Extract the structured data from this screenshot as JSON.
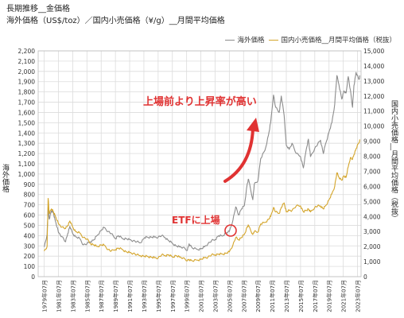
{
  "title_line1": "長期推移__金価格",
  "title_line2": "海外価格（US$/toz）／国内小売価格（¥/g）__月間平均価格",
  "chart_data": {
    "type": "line",
    "x_tick_labels": [
      "1979年07月",
      "1981年07月",
      "1983年07月",
      "1985年07月",
      "1987年07月",
      "1989年07月",
      "1991年07月",
      "1993年07月",
      "1995年07月",
      "1997年07月",
      "1999年07月",
      "2001年07月",
      "2003年07月",
      "2005年07月",
      "2007年07月",
      "2009年07月",
      "2011年07月",
      "2013年07月",
      "2015年07月",
      "2017年07月",
      "2019年07月",
      "2021年07月",
      "2023年07月"
    ],
    "ylabel_left": "海外価格",
    "ylabel_right": "国内小売価格__月間平均価格（税抜）",
    "ylim_left": [
      0,
      2200
    ],
    "yticks_left": [
      "0",
      "100",
      "200",
      "300",
      "400",
      "500",
      "600",
      "700",
      "800",
      "900",
      "1,000",
      "1,100",
      "1,200",
      "1,300",
      "1,400",
      "1,500",
      "1,600",
      "1,700",
      "1,800",
      "1,900",
      "2,000",
      "2,100",
      "2,200"
    ],
    "ylim_right": [
      0,
      15000
    ],
    "yticks_right": [
      "0",
      "1,000",
      "2,000",
      "3,000",
      "4,000",
      "5,000",
      "6,000",
      "7,000",
      "8,000",
      "9,000",
      "10,000",
      "11,000",
      "12,000",
      "13,000",
      "14,000",
      "15,000"
    ],
    "grid": true,
    "legend_position": "top-right",
    "series": [
      {
        "name": "海外価格",
        "axis": "left",
        "color": "#8c8c8c",
        "points": [
          [
            1979.5,
            290
          ],
          [
            1979.9,
            410
          ],
          [
            1980.05,
            680
          ],
          [
            1980.2,
            560
          ],
          [
            1980.5,
            640
          ],
          [
            1980.8,
            620
          ],
          [
            1981.0,
            560
          ],
          [
            1981.5,
            430
          ],
          [
            1982.0,
            390
          ],
          [
            1982.5,
            340
          ],
          [
            1982.8,
            420
          ],
          [
            1983.1,
            490
          ],
          [
            1983.5,
            420
          ],
          [
            1983.9,
            390
          ],
          [
            1984.5,
            370
          ],
          [
            1985.0,
            310
          ],
          [
            1985.5,
            320
          ],
          [
            1986.0,
            340
          ],
          [
            1986.5,
            360
          ],
          [
            1986.9,
            400
          ],
          [
            1987.5,
            450
          ],
          [
            1987.9,
            480
          ],
          [
            1988.5,
            440
          ],
          [
            1988.9,
            420
          ],
          [
            1989.5,
            370
          ],
          [
            1989.9,
            400
          ],
          [
            1990.5,
            370
          ],
          [
            1991.0,
            370
          ],
          [
            1991.5,
            360
          ],
          [
            1992.0,
            350
          ],
          [
            1992.5,
            340
          ],
          [
            1993.0,
            330
          ],
          [
            1993.6,
            380
          ],
          [
            1994.0,
            385
          ],
          [
            1994.5,
            385
          ],
          [
            1995.0,
            385
          ],
          [
            1995.5,
            385
          ],
          [
            1996.0,
            400
          ],
          [
            1996.5,
            380
          ],
          [
            1997.0,
            350
          ],
          [
            1997.5,
            325
          ],
          [
            1998.0,
            300
          ],
          [
            1998.5,
            290
          ],
          [
            1999.0,
            287
          ],
          [
            1999.6,
            255
          ],
          [
            1999.85,
            320
          ],
          [
            2000.3,
            280
          ],
          [
            2001.0,
            265
          ],
          [
            2001.5,
            270
          ],
          [
            2002.0,
            290
          ],
          [
            2002.5,
            320
          ],
          [
            2003.0,
            350
          ],
          [
            2003.5,
            360
          ],
          [
            2004.0,
            400
          ],
          [
            2004.5,
            395
          ],
          [
            2005.0,
            425
          ],
          [
            2005.5,
            440
          ],
          [
            2006.0,
            550
          ],
          [
            2006.4,
            680
          ],
          [
            2006.8,
            600
          ],
          [
            2007.2,
            660
          ],
          [
            2007.6,
            690
          ],
          [
            2008.0,
            900
          ],
          [
            2008.2,
            950
          ],
          [
            2008.8,
            750
          ],
          [
            2009.0,
            900
          ],
          [
            2009.5,
            930
          ],
          [
            2009.9,
            1150
          ],
          [
            2010.5,
            1230
          ],
          [
            2011.0,
            1380
          ],
          [
            2011.3,
            1500
          ],
          [
            2011.7,
            1770
          ],
          [
            2012.0,
            1650
          ],
          [
            2012.5,
            1600
          ],
          [
            2012.8,
            1760
          ],
          [
            2013.2,
            1570
          ],
          [
            2013.5,
            1280
          ],
          [
            2013.9,
            1240
          ],
          [
            2014.3,
            1300
          ],
          [
            2014.9,
            1200
          ],
          [
            2015.5,
            1170
          ],
          [
            2015.9,
            1060
          ],
          [
            2016.3,
            1240
          ],
          [
            2016.6,
            1340
          ],
          [
            2016.9,
            1170
          ],
          [
            2017.5,
            1250
          ],
          [
            2017.9,
            1290
          ],
          [
            2018.3,
            1330
          ],
          [
            2018.7,
            1200
          ],
          [
            2019.0,
            1290
          ],
          [
            2019.5,
            1410
          ],
          [
            2019.9,
            1500
          ],
          [
            2020.3,
            1680
          ],
          [
            2020.6,
            1960
          ],
          [
            2020.9,
            1870
          ],
          [
            2021.3,
            1730
          ],
          [
            2021.6,
            1810
          ],
          [
            2021.9,
            1790
          ],
          [
            2022.2,
            1950
          ],
          [
            2022.5,
            1820
          ],
          [
            2022.8,
            1650
          ],
          [
            2023.0,
            1860
          ],
          [
            2023.3,
            1990
          ],
          [
            2023.7,
            1920
          ],
          [
            2023.85,
            1960
          ]
        ]
      },
      {
        "name": "国内小売価格__月間平均価格（税抜）",
        "axis": "right",
        "color": "#d4a52b",
        "points": [
          [
            1979.5,
            1700
          ],
          [
            1979.9,
            2000
          ],
          [
            1980.05,
            5200
          ],
          [
            1980.2,
            4200
          ],
          [
            1980.5,
            4500
          ],
          [
            1980.8,
            4300
          ],
          [
            1981.0,
            4100
          ],
          [
            1981.5,
            3500
          ],
          [
            1982.0,
            3300
          ],
          [
            1982.5,
            3200
          ],
          [
            1982.8,
            3400
          ],
          [
            1983.1,
            3700
          ],
          [
            1983.5,
            3300
          ],
          [
            1983.9,
            3000
          ],
          [
            1984.5,
            2900
          ],
          [
            1985.0,
            2600
          ],
          [
            1985.5,
            2500
          ],
          [
            1986.0,
            2200
          ],
          [
            1986.5,
            2100
          ],
          [
            1986.9,
            2000
          ],
          [
            1987.5,
            2100
          ],
          [
            1987.9,
            2100
          ],
          [
            1988.5,
            1800
          ],
          [
            1988.9,
            1700
          ],
          [
            1989.5,
            1800
          ],
          [
            1989.9,
            1900
          ],
          [
            1990.5,
            1800
          ],
          [
            1991.0,
            1650
          ],
          [
            1991.5,
            1600
          ],
          [
            1992.0,
            1550
          ],
          [
            1992.5,
            1450
          ],
          [
            1993.0,
            1400
          ],
          [
            1993.6,
            1350
          ],
          [
            1994.0,
            1350
          ],
          [
            1994.5,
            1300
          ],
          [
            1995.0,
            1250
          ],
          [
            1995.5,
            1250
          ],
          [
            1996.0,
            1450
          ],
          [
            1996.5,
            1400
          ],
          [
            1997.0,
            1450
          ],
          [
            1997.5,
            1300
          ],
          [
            1998.0,
            1400
          ],
          [
            1998.5,
            1300
          ],
          [
            1999.0,
            1250
          ],
          [
            1999.6,
            1050
          ],
          [
            1999.85,
            1150
          ],
          [
            2000.3,
            1050
          ],
          [
            2001.0,
            1100
          ],
          [
            2001.5,
            1150
          ],
          [
            2002.0,
            1250
          ],
          [
            2002.5,
            1300
          ],
          [
            2003.0,
            1450
          ],
          [
            2003.5,
            1450
          ],
          [
            2004.0,
            1500
          ],
          [
            2004.5,
            1500
          ],
          [
            2005.0,
            1550
          ],
          [
            2005.5,
            1650
          ],
          [
            2006.0,
            2100
          ],
          [
            2006.4,
            2600
          ],
          [
            2006.8,
            2450
          ],
          [
            2007.2,
            2600
          ],
          [
            2007.6,
            2800
          ],
          [
            2008.0,
            3300
          ],
          [
            2008.2,
            3400
          ],
          [
            2008.8,
            2800
          ],
          [
            2009.0,
            3000
          ],
          [
            2009.5,
            2950
          ],
          [
            2009.9,
            3500
          ],
          [
            2010.5,
            3600
          ],
          [
            2011.0,
            3800
          ],
          [
            2011.3,
            4000
          ],
          [
            2011.7,
            4600
          ],
          [
            2012.0,
            4300
          ],
          [
            2012.5,
            4200
          ],
          [
            2012.8,
            4600
          ],
          [
            2013.2,
            4900
          ],
          [
            2013.5,
            4300
          ],
          [
            2013.9,
            4400
          ],
          [
            2014.3,
            4400
          ],
          [
            2014.9,
            4700
          ],
          [
            2015.5,
            4700
          ],
          [
            2015.9,
            4300
          ],
          [
            2016.3,
            4400
          ],
          [
            2016.6,
            4500
          ],
          [
            2016.9,
            4300
          ],
          [
            2017.5,
            4600
          ],
          [
            2017.9,
            4700
          ],
          [
            2018.3,
            4700
          ],
          [
            2018.7,
            4500
          ],
          [
            2019.0,
            4700
          ],
          [
            2019.5,
            5100
          ],
          [
            2019.9,
            5500
          ],
          [
            2020.3,
            6000
          ],
          [
            2020.6,
            6900
          ],
          [
            2020.9,
            6600
          ],
          [
            2021.3,
            6400
          ],
          [
            2021.6,
            6700
          ],
          [
            2021.9,
            6600
          ],
          [
            2022.2,
            7300
          ],
          [
            2022.5,
            7900
          ],
          [
            2022.8,
            7800
          ],
          [
            2023.0,
            8100
          ],
          [
            2023.3,
            8500
          ],
          [
            2023.7,
            8900
          ],
          [
            2023.85,
            9100
          ]
        ]
      }
    ],
    "annotations": [
      {
        "text": "ETFに上場",
        "color": "#e03232"
      },
      {
        "text": "上場前より上昇率が高い",
        "color": "#e03232"
      }
    ]
  }
}
